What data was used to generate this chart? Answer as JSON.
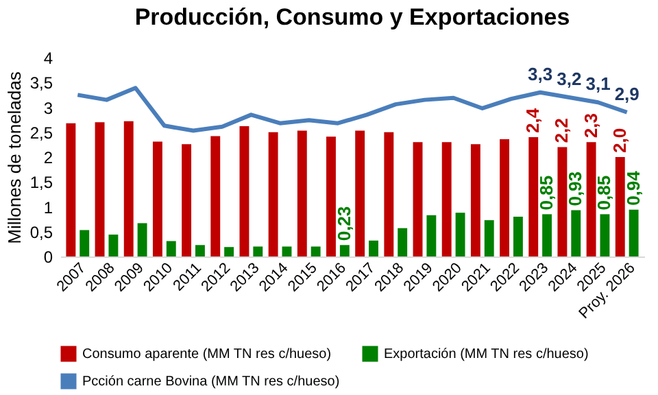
{
  "chart_data": {
    "type": "bar",
    "title": "Producción, Consumo y Exportaciones",
    "ylabel": "Millones de toneladas",
    "categories": [
      "2007",
      "2008",
      "2009",
      "2010",
      "2011",
      "2012",
      "2013",
      "2014",
      "2015",
      "2016",
      "2017",
      "2018",
      "2019",
      "2020",
      "2021",
      "2022",
      "2023",
      "2024",
      "2025",
      "Proy. 2026"
    ],
    "series": [
      {
        "name": "Consumo aparente (MM TN res c/hueso)",
        "type": "bar",
        "color": "#c00000",
        "values": [
          2.68,
          2.7,
          2.72,
          2.31,
          2.26,
          2.42,
          2.62,
          2.5,
          2.53,
          2.41,
          2.53,
          2.5,
          2.3,
          2.3,
          2.26,
          2.36,
          2.4,
          2.2,
          2.3,
          2.0
        ],
        "value_labels": [
          null,
          null,
          null,
          null,
          null,
          null,
          null,
          null,
          null,
          null,
          null,
          null,
          null,
          null,
          null,
          null,
          "2,4",
          "2,2",
          "2,3",
          "2,0"
        ]
      },
      {
        "name": "Exportación (MM TN res c/hueso)",
        "type": "bar",
        "color": "#008000",
        "values": [
          0.53,
          0.44,
          0.67,
          0.31,
          0.23,
          0.19,
          0.2,
          0.2,
          0.2,
          0.23,
          0.32,
          0.57,
          0.83,
          0.88,
          0.73,
          0.8,
          0.85,
          0.93,
          0.85,
          0.94
        ],
        "value_labels": [
          null,
          null,
          null,
          null,
          null,
          null,
          null,
          null,
          null,
          "0,23",
          null,
          null,
          null,
          null,
          null,
          null,
          "0,85",
          "0,93",
          "0,85",
          "0,94"
        ]
      },
      {
        "name": "Pcción carne Bovina (MM TN res c/hueso)",
        "type": "line",
        "color": "#4a7ebb",
        "values": [
          3.25,
          3.15,
          3.39,
          2.63,
          2.53,
          2.61,
          2.85,
          2.68,
          2.74,
          2.68,
          2.85,
          3.06,
          3.15,
          3.19,
          2.98,
          3.17,
          3.3,
          3.2,
          3.1,
          2.9
        ],
        "value_labels": [
          null,
          null,
          null,
          null,
          null,
          null,
          null,
          null,
          null,
          null,
          null,
          null,
          null,
          null,
          null,
          null,
          "3,3",
          "3,2",
          "3,1",
          "2,9"
        ]
      }
    ],
    "ylim": [
      0,
      4
    ],
    "yticks": [
      0,
      {
        "value": 0.5,
        "label": "0,5"
      },
      1,
      {
        "value": 1.5,
        "label": "1,5"
      },
      2,
      {
        "value": 2.5,
        "label": "2,5"
      },
      3,
      {
        "value": 3.5,
        "label": "3,5"
      },
      4
    ],
    "grid": false,
    "legend": "bottom"
  }
}
